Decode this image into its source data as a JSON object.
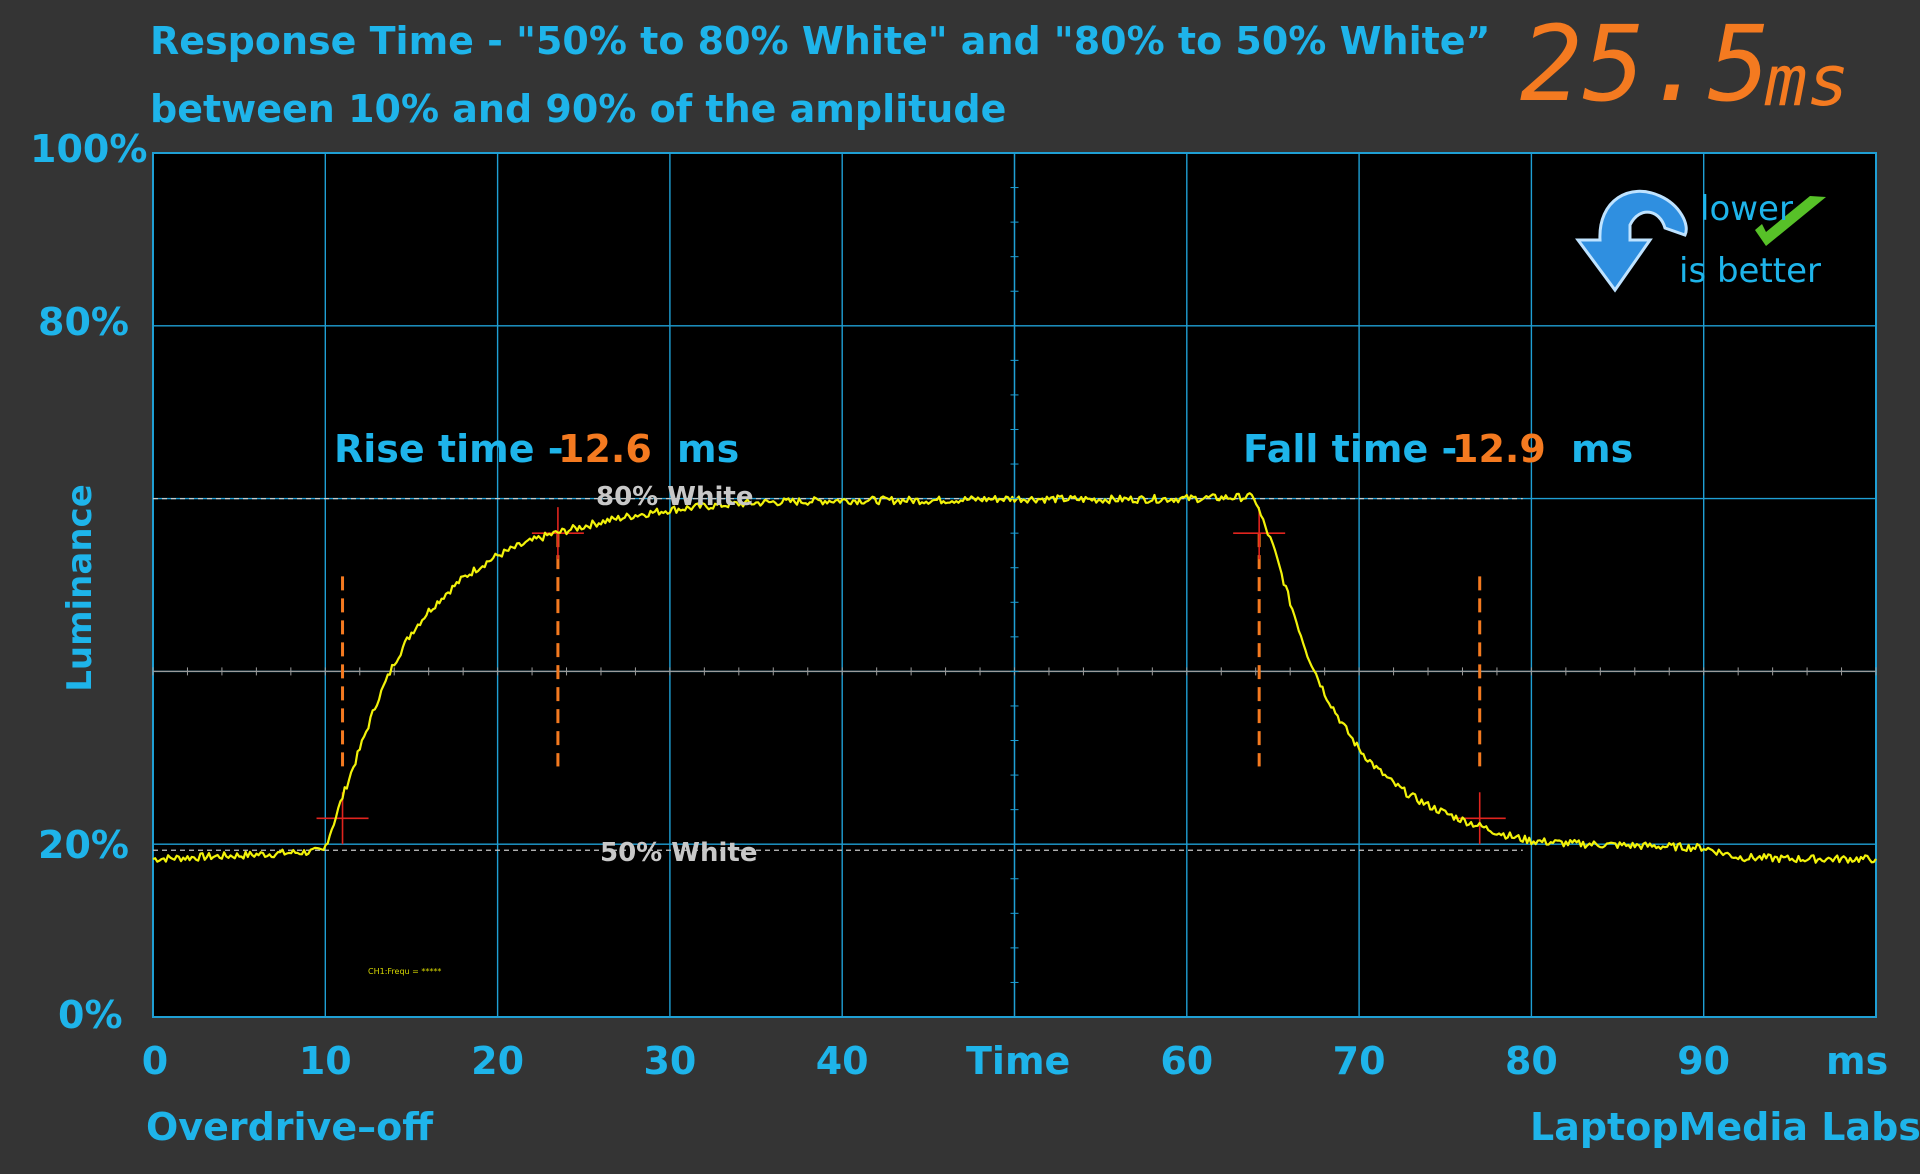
{
  "header": {
    "title_line1": "Response Time - \"50% to 80% White\" and \"80% to 50% White”",
    "title_line2": "between 10% and 90% of the amplitude",
    "total_value": "25.5",
    "total_unit": "ms"
  },
  "badge": {
    "line1": "lower",
    "line2": "is better",
    "icon": "arrow-down-icon"
  },
  "footer": {
    "left": "Overdrive–off",
    "right": "LaptopMedia Labs"
  },
  "colors": {
    "background": "#343434",
    "plot_bg": "#000000",
    "grid": "#1f9fd4",
    "accent_blue": "#1eb4ea",
    "accent_orange": "#f47a20",
    "trace": "#f2f20a",
    "marker_red": "#e0241e"
  },
  "chart_data": {
    "type": "line",
    "xlabel": "Time",
    "ylabel": "Luminance",
    "x_unit_label": "ms",
    "xlim": [
      0,
      100
    ],
    "ylim": [
      0,
      100
    ],
    "x_tick_labels": [
      "0",
      "10",
      "20",
      "30",
      "40",
      "60",
      "70",
      "80",
      "90"
    ],
    "x_ticks": [
      0,
      10,
      20,
      30,
      40,
      60,
      70,
      80,
      90
    ],
    "y_tick_labels": [
      "100%",
      "80%",
      "20%",
      "0%"
    ],
    "y_ticks": [
      100,
      80,
      20,
      0
    ],
    "grid": true,
    "reference_levels": [
      {
        "label": "80% White",
        "y": 60
      },
      {
        "label": "50% White",
        "y": 19.3
      }
    ],
    "annotations": {
      "rise_label": "Rise time -",
      "rise_value": "12.6",
      "rise_unit": "ms",
      "fall_label": "Fall time -",
      "fall_value": "12.9",
      "fall_unit": "ms",
      "channel_label": "CH1:Frequ = *****"
    },
    "markers": [
      {
        "x": 11,
        "y": 23
      },
      {
        "x": 23.5,
        "y": 56
      },
      {
        "x": 64.2,
        "y": 56
      },
      {
        "x": 77,
        "y": 23
      }
    ],
    "series": [
      {
        "x": [
          0,
          5,
          9.9,
          10.5,
          11,
          12,
          13,
          14,
          15,
          16,
          17,
          18,
          19,
          20,
          21,
          22,
          23,
          24,
          25,
          26,
          27,
          28,
          30,
          32,
          34,
          36,
          40,
          45,
          50,
          55,
          60,
          63.9,
          64.3,
          64.7,
          65,
          66,
          67,
          68,
          69,
          70,
          71,
          72,
          73,
          74,
          75,
          76,
          77,
          78,
          79,
          80,
          82,
          85,
          90,
          92,
          95,
          100
        ],
        "y": [
          18.3,
          18.7,
          19.2,
          22.5,
          25.5,
          31,
          36.5,
          41,
          44.5,
          47,
          49,
          50.8,
          52.2,
          53.4,
          54.3,
          55.1,
          55.8,
          56.3,
          56.8,
          57.3,
          57.7,
          58.1,
          58.7,
          59.1,
          59.4,
          59.6,
          59.8,
          59.8,
          60,
          59.9,
          60,
          60.2,
          58,
          56,
          54.5,
          48,
          42,
          37.5,
          34,
          31,
          28.8,
          27,
          25.6,
          24.5,
          23.6,
          22.8,
          22.1,
          21.4,
          20.8,
          20.4,
          20.1,
          19.9,
          19.6,
          18.5,
          18.3,
          18.3
        ]
      }
    ]
  }
}
